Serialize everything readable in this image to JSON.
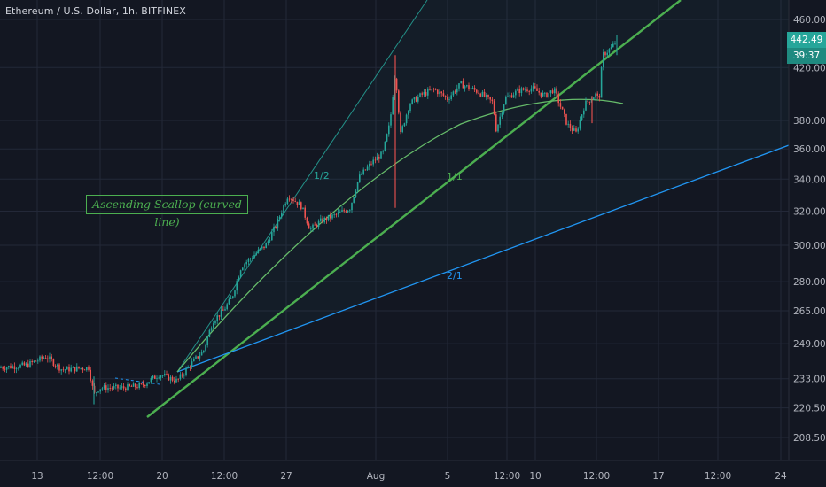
{
  "symbol": {
    "title": "Ethereum / U.S. Dollar, 1h, BITFINEX"
  },
  "annotation": {
    "text": "Ascending Scallop (curved line)"
  },
  "price_tag": {
    "value": "442.49",
    "countdown": "39:37"
  },
  "colors": {
    "background": "#131722",
    "grid": "#232838",
    "axis_text": "#b2b5be",
    "up": "#26a69a",
    "down": "#ef5350",
    "trend": "#4caf50",
    "fan_1_2": "#26a69a",
    "fan_2_1": "#2196f3",
    "scallop": "#66bb6a"
  },
  "chart_data": {
    "type": "candlestick",
    "y_axis": {
      "scale": "log",
      "ticks": [
        "208.50",
        "220.50",
        "233.00",
        "249.00",
        "265.00",
        "280.00",
        "300.00",
        "320.00",
        "340.00",
        "360.00",
        "380.00",
        "420.00",
        "460.00"
      ]
    },
    "x_axis": {
      "ticks": [
        "13",
        "12:00",
        "20",
        "12:00",
        "27",
        "Aug",
        "5",
        "12:00",
        "10",
        "12:00",
        "17",
        "12:00",
        "24"
      ]
    },
    "gann_fan_labels": [
      "1/2",
      "1/1",
      "2/1"
    ],
    "last_price": 442.49,
    "ohlc_path": [
      [
        0,
        238
      ],
      [
        30,
        239
      ],
      [
        52,
        243
      ],
      [
        70,
        237
      ],
      [
        100,
        238
      ],
      [
        106,
        226
      ],
      [
        112,
        229
      ],
      [
        140,
        229
      ],
      [
        160,
        230
      ],
      [
        180,
        235
      ],
      [
        200,
        232
      ],
      [
        212,
        238
      ],
      [
        230,
        246
      ],
      [
        240,
        260
      ],
      [
        252,
        265
      ],
      [
        262,
        272
      ],
      [
        272,
        288
      ],
      [
        290,
        296
      ],
      [
        300,
        300
      ],
      [
        312,
        312
      ],
      [
        325,
        330
      ],
      [
        340,
        323
      ],
      [
        350,
        309
      ],
      [
        362,
        314
      ],
      [
        380,
        318
      ],
      [
        395,
        322
      ],
      [
        405,
        341
      ],
      [
        420,
        351
      ],
      [
        432,
        357
      ],
      [
        440,
        378
      ],
      [
        446,
        417
      ],
      [
        452,
        370
      ],
      [
        462,
        392
      ],
      [
        476,
        399
      ],
      [
        490,
        403
      ],
      [
        505,
        396
      ],
      [
        520,
        407
      ],
      [
        540,
        401
      ],
      [
        556,
        393
      ],
      [
        560,
        373
      ],
      [
        570,
        396
      ],
      [
        585,
        402
      ],
      [
        600,
        404
      ],
      [
        615,
        398
      ],
      [
        625,
        403
      ],
      [
        640,
        377
      ],
      [
        650,
        371
      ],
      [
        660,
        392
      ],
      [
        672,
        399
      ],
      [
        676,
        395
      ],
      [
        680,
        430
      ],
      [
        690,
        436
      ],
      [
        696,
        442
      ]
    ]
  }
}
